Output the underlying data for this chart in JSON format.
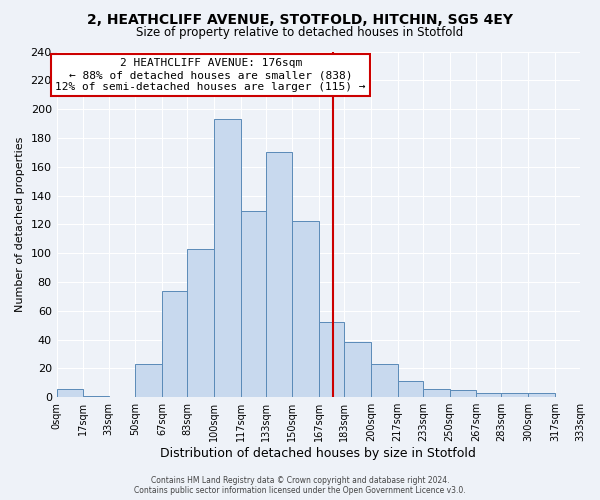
{
  "title": "2, HEATHCLIFF AVENUE, STOTFOLD, HITCHIN, SG5 4EY",
  "subtitle": "Size of property relative to detached houses in Stotfold",
  "xlabel": "Distribution of detached houses by size in Stotfold",
  "ylabel": "Number of detached properties",
  "bin_edges": [
    0,
    17,
    33,
    50,
    67,
    83,
    100,
    117,
    133,
    150,
    167,
    183,
    200,
    217,
    233,
    250,
    267,
    283,
    300,
    317,
    333
  ],
  "bar_heights": [
    6,
    1,
    0,
    23,
    74,
    103,
    193,
    129,
    170,
    122,
    52,
    38,
    23,
    11,
    6,
    5,
    3,
    3,
    3,
    0
  ],
  "bar_color": "#c8d9ee",
  "bar_edge_color": "#5a8ab8",
  "vline_x": 176,
  "vline_color": "#cc0000",
  "annotation_title": "2 HEATHCLIFF AVENUE: 176sqm",
  "annotation_line1": "← 88% of detached houses are smaller (838)",
  "annotation_line2": "12% of semi-detached houses are larger (115) →",
  "annotation_box_edge": "#cc0000",
  "tick_labels": [
    "0sqm",
    "17sqm",
    "33sqm",
    "50sqm",
    "67sqm",
    "83sqm",
    "100sqm",
    "117sqm",
    "133sqm",
    "150sqm",
    "167sqm",
    "183sqm",
    "200sqm",
    "217sqm",
    "233sqm",
    "250sqm",
    "267sqm",
    "283sqm",
    "300sqm",
    "317sqm",
    "333sqm"
  ],
  "ylim": [
    0,
    240
  ],
  "yticks": [
    0,
    20,
    40,
    60,
    80,
    100,
    120,
    140,
    160,
    180,
    200,
    220,
    240
  ],
  "footer_line1": "Contains HM Land Registry data © Crown copyright and database right 2024.",
  "footer_line2": "Contains public sector information licensed under the Open Government Licence v3.0.",
  "background_color": "#eef2f8",
  "grid_color": "#ffffff"
}
